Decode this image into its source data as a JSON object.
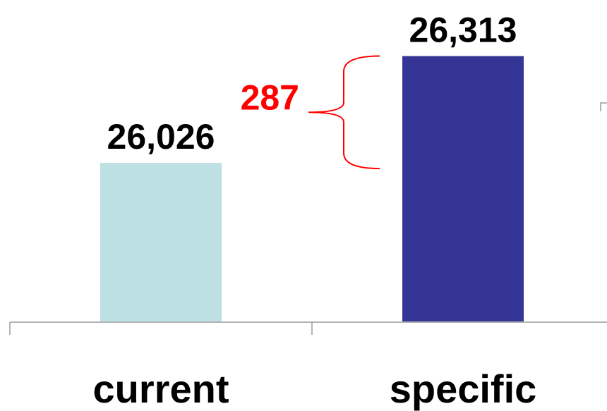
{
  "chart_data": {
    "type": "bar",
    "categories": [
      "current",
      "specific"
    ],
    "values": [
      26026,
      26313
    ],
    "value_labels": [
      "26,026",
      "26,313"
    ],
    "ylim": [
      25600,
      26350
    ],
    "difference": {
      "label": "287",
      "value": 287,
      "color": "#ff0000"
    },
    "colors": [
      "#bde0e3",
      "#353596"
    ],
    "axis_color": "#9a9a9a",
    "grid": false,
    "legend": "none"
  }
}
